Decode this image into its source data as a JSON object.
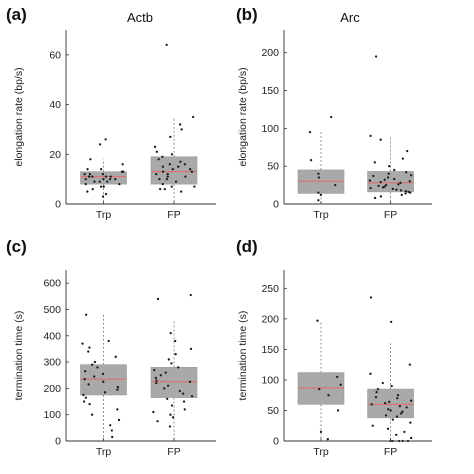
{
  "chart_data": [
    {
      "panel": "(a)",
      "type": "box",
      "title": "Actb",
      "ylabel": "elongation rate (bp/s)",
      "ylim": [
        0,
        70
      ],
      "yticks": [
        0,
        20,
        40,
        60
      ],
      "categories": [
        "Trp",
        "FP"
      ],
      "boxes": [
        {
          "category": "Trp",
          "q1": 8,
          "median": 11,
          "q3": 13,
          "whisker_low": 1,
          "whisker_high": 18
        },
        {
          "category": "FP",
          "q1": 8,
          "median": 13,
          "q3": 19,
          "whisker_low": 1,
          "whisker_high": 35
        }
      ],
      "points": [
        {
          "category": "Trp",
          "values": [
            3,
            4,
            5,
            6,
            7,
            7,
            8,
            8,
            9,
            9,
            9,
            10,
            10,
            10,
            10,
            11,
            11,
            11,
            11,
            12,
            12,
            12,
            13,
            13,
            14,
            14,
            16,
            18,
            24,
            26
          ]
        },
        {
          "category": "FP",
          "values": [
            5,
            6,
            6,
            7,
            7,
            8,
            9,
            10,
            10,
            11,
            11,
            12,
            12,
            13,
            13,
            14,
            14,
            15,
            15,
            16,
            16,
            17,
            18,
            19,
            20,
            21,
            23,
            27,
            30,
            32,
            35,
            64
          ]
        }
      ]
    },
    {
      "panel": "(b)",
      "type": "box",
      "title": "Arc",
      "ylabel": "elongation rate (bp/s)",
      "ylim": [
        0,
        230
      ],
      "yticks": [
        0,
        50,
        100,
        150,
        200
      ],
      "categories": [
        "Trp",
        "FP"
      ],
      "boxes": [
        {
          "category": "Trp",
          "q1": 14,
          "median": 30,
          "q3": 45,
          "whisker_low": 5,
          "whisker_high": 95
        },
        {
          "category": "FP",
          "q1": 16,
          "median": 28,
          "q3": 43,
          "whisker_low": 4,
          "whisker_high": 90
        }
      ],
      "points": [
        {
          "category": "Trp",
          "values": [
            5,
            12,
            15,
            25,
            35,
            40,
            58,
            95,
            115
          ]
        },
        {
          "category": "FP",
          "values": [
            8,
            10,
            12,
            14,
            15,
            16,
            17,
            18,
            19,
            20,
            21,
            22,
            23,
            24,
            25,
            26,
            28,
            29,
            30,
            31,
            32,
            33,
            35,
            37,
            38,
            40,
            42,
            45,
            50,
            55,
            60,
            70,
            85,
            90,
            195
          ]
        }
      ]
    },
    {
      "panel": "(c)",
      "type": "box",
      "title": "",
      "ylabel": "termination time (s)",
      "ylim": [
        0,
        650
      ],
      "yticks": [
        0,
        100,
        200,
        300,
        400,
        500,
        600
      ],
      "categories": [
        "Trp",
        "FP"
      ],
      "boxes": [
        {
          "category": "Trp",
          "q1": 175,
          "median": 235,
          "q3": 290,
          "whisker_low": 5,
          "whisker_high": 480
        },
        {
          "category": "FP",
          "q1": 165,
          "median": 225,
          "q3": 280,
          "whisker_low": 5,
          "whisker_high": 460
        }
      ],
      "points": [
        {
          "category": "Trp",
          "values": [
            15,
            40,
            60,
            80,
            100,
            120,
            140,
            150,
            165,
            175,
            185,
            195,
            205,
            215,
            225,
            235,
            245,
            255,
            265,
            280,
            290,
            300,
            320,
            340,
            355,
            370,
            380,
            480
          ]
        },
        {
          "category": "FP",
          "values": [
            55,
            75,
            90,
            100,
            110,
            120,
            135,
            150,
            160,
            170,
            180,
            190,
            200,
            210,
            220,
            225,
            230,
            240,
            250,
            260,
            270,
            280,
            295,
            310,
            330,
            350,
            380,
            410,
            540,
            555
          ]
        }
      ]
    },
    {
      "panel": "(d)",
      "type": "box",
      "title": "",
      "ylabel": "termination time (s)",
      "ylim": [
        0,
        280
      ],
      "yticks": [
        0,
        50,
        100,
        150,
        200,
        250
      ],
      "categories": [
        "Trp",
        "FP"
      ],
      "boxes": [
        {
          "category": "Trp",
          "q1": 60,
          "median": 87,
          "q3": 112,
          "whisker_low": 0,
          "whisker_high": 197
        },
        {
          "category": "FP",
          "q1": 38,
          "median": 60,
          "q3": 85,
          "whisker_low": 0,
          "whisker_high": 160
        }
      ],
      "points": [
        {
          "category": "Trp",
          "values": [
            3,
            15,
            50,
            75,
            85,
            92,
            105,
            197
          ]
        },
        {
          "category": "FP",
          "values": [
            0,
            0,
            0,
            0,
            0,
            5,
            10,
            15,
            20,
            25,
            30,
            35,
            40,
            42,
            45,
            48,
            50,
            52,
            55,
            57,
            60,
            62,
            64,
            66,
            70,
            72,
            75,
            80,
            85,
            90,
            95,
            110,
            125,
            195,
            235
          ]
        }
      ]
    }
  ]
}
